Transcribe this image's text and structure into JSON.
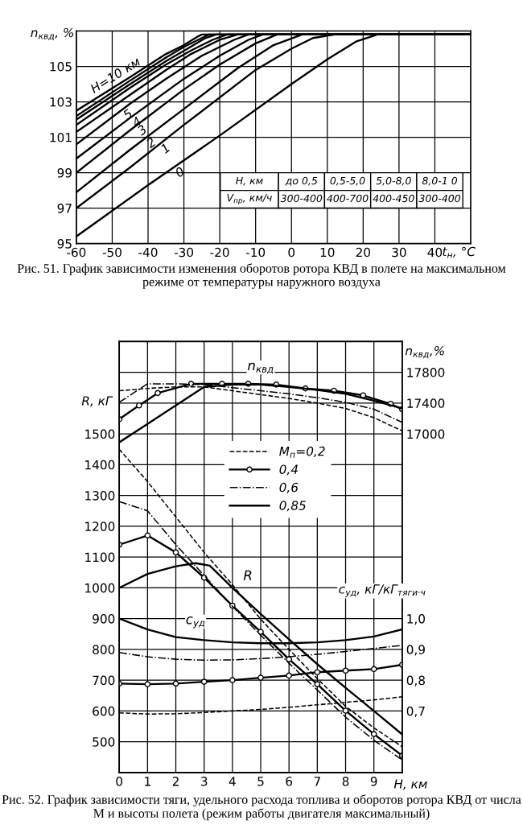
{
  "chart_data": [
    {
      "type": "line",
      "title": "Рис. 51. График зависимости изменения оборотов ротора КВД в полете на максимальном режиме от температуры наружного воздуха",
      "xlabel": "t$_{н}$, °C",
      "ylabel": "n$_{квд}$, %",
      "xlim": [
        -60,
        50
      ],
      "xticks": [
        -60,
        -50,
        -40,
        -30,
        -20,
        -10,
        0,
        10,
        20,
        30,
        40
      ],
      "ylim": [
        95,
        107
      ],
      "yticks": [
        95,
        97,
        99,
        101,
        103,
        105
      ],
      "grid": true,
      "legend": false,
      "annotations": [
        "H, км",
        "до 0,5",
        "0,5-5,0",
        "5,0-8,0",
        "8,0-1 0",
        "V$_{пр}$, км/ч",
        "300-400",
        "400-700",
        "400-450",
        "300-400"
      ],
      "series": [
        {
          "name": "0",
          "color": "#000000",
          "x": [
            -60,
            -40,
            -20,
            0,
            10,
            18,
            24,
            50
          ],
          "values": [
            95.4,
            98.3,
            101.1,
            104.0,
            105.4,
            106.4,
            106.8,
            106.8
          ]
        },
        {
          "name": "1",
          "color": "#000000",
          "x": [
            -60,
            -45,
            -30,
            -10,
            0,
            6,
            12,
            50
          ],
          "values": [
            97.0,
            99.3,
            101.7,
            104.8,
            106.0,
            106.6,
            106.8,
            106.8
          ]
        },
        {
          "name": "2",
          "color": "#000000",
          "x": [
            -60,
            -45,
            -30,
            -15,
            -5,
            3,
            50
          ],
          "values": [
            97.9,
            100.3,
            102.6,
            104.9,
            106.2,
            106.8,
            106.8
          ]
        },
        {
          "name": "3",
          "color": "#000000",
          "x": [
            -60,
            -45,
            -30,
            -20,
            -10,
            -4,
            50
          ],
          "values": [
            99.0,
            101.4,
            103.7,
            105.1,
            106.3,
            106.8,
            106.8
          ]
        },
        {
          "name": "4",
          "color": "#000000",
          "x": [
            -60,
            -45,
            -30,
            -20,
            -12,
            -8,
            50
          ],
          "values": [
            99.8,
            102.1,
            104.3,
            105.6,
            106.5,
            106.8,
            106.8
          ]
        },
        {
          "name": "5",
          "color": "#000000",
          "x": [
            -60,
            -45,
            -35,
            -25,
            -16,
            -12,
            50
          ],
          "values": [
            100.6,
            102.9,
            104.3,
            105.6,
            106.5,
            106.8,
            106.8
          ]
        },
        {
          "color": "#000000",
          "x": [
            -60,
            -45,
            -35,
            -28,
            -20,
            -15,
            50
          ],
          "values": [
            101.3,
            103.4,
            104.8,
            105.7,
            106.5,
            106.8,
            106.8
          ]
        },
        {
          "color": "#000000",
          "x": [
            -60,
            -45,
            -35,
            -28,
            -22,
            -18,
            50
          ],
          "values": [
            101.7,
            103.8,
            105.1,
            105.9,
            106.5,
            106.8,
            106.8
          ]
        },
        {
          "color": "#000000",
          "x": [
            -60,
            -45,
            -35,
            -29,
            -24,
            -21,
            50
          ],
          "values": [
            102.0,
            104.0,
            105.3,
            106.0,
            106.6,
            106.8,
            106.8
          ]
        },
        {
          "color": "#000000",
          "x": [
            -60,
            -45,
            -35,
            -30,
            -25,
            -23,
            50
          ],
          "values": [
            102.2,
            104.2,
            105.5,
            106.1,
            106.6,
            106.8,
            106.8
          ]
        },
        {
          "name": "H=10 км",
          "color": "#000000",
          "x": [
            -60,
            -45,
            -35,
            -30,
            -26,
            -25,
            50
          ],
          "values": [
            102.5,
            104.4,
            105.7,
            106.2,
            106.7,
            106.8,
            106.8
          ]
        }
      ]
    },
    {
      "type": "line",
      "title": "Рис. 52. График зависимости тяги, удельного расхода топлива и оборотов ротора КВД от числа М и высоты полета (режим работы двигателя максимальный)",
      "xlabel": "H, км",
      "ylabel": "R, кГ",
      "y2label": "n$_{квд}$,%",
      "y3label": "c$_{уд}$, кГ/кГ$_{тяги·ч}$",
      "xlim": [
        0,
        10
      ],
      "xticks": [
        0,
        1,
        2,
        3,
        4,
        5,
        6,
        7,
        8,
        9,
        {
          "value": 10,
          "label": null
        }
      ],
      "ylim": [
        400,
        1800
      ],
      "yticks": [
        500,
        600,
        700,
        800,
        900,
        1000,
        1100,
        1200,
        1300,
        1400,
        1500,
        {
          "value": 1600,
          "label": null
        },
        {
          "value": 1700,
          "label": null
        }
      ],
      "y2lim": [
        12600,
        18200
      ],
      "y2ticks": [
        17000,
        17400,
        17800
      ],
      "y3lim": [
        0.5,
        1.9
      ],
      "y3ticks": [
        {
          "value": 0.7,
          "label": "0,7"
        },
        {
          "value": 0.8,
          "label": "0,8"
        },
        {
          "value": 0.9,
          "label": "0,9"
        },
        {
          "value": 1.0,
          "label": "1,0"
        }
      ],
      "grid": true,
      "legend": "center",
      "annotations": [
        "R",
        "c$_{уд}$",
        "n$_{квд}$"
      ],
      "x": [
        0,
        1,
        2,
        3,
        4,
        5,
        6,
        7,
        8,
        9,
        10
      ],
      "series": [
        {
          "name": "M$_{п}$=0,2",
          "color": "#000000",
          "line_style": "dashed",
          "values": [
            1450,
            1345,
            1230,
            1115,
            1010,
            898,
            800,
            705,
            615,
            545,
            484
          ]
        },
        {
          "name": "0,4",
          "color": "#000000",
          "line_style": "solid",
          "marker": "circle",
          "values": [
            1140,
            1170,
            1115,
            1033,
            942,
            857,
            768,
            687,
            601,
            525,
            455
          ]
        },
        {
          "name": "0,6",
          "color": "#000000",
          "line_style": "dashdot",
          "values": [
            1280,
            1250,
            1140,
            1040,
            940,
            846,
            755,
            668,
            580,
            505,
            441
          ]
        },
        {
          "name": "0,85",
          "color": "#000000",
          "line_style": "solid",
          "x": [
            0,
            1,
            2,
            2.7,
            3.2,
            4,
            5,
            6,
            7,
            8,
            9,
            10
          ],
          "values": [
            1000,
            1045,
            1070,
            1080,
            1072,
            1000,
            915,
            833,
            752,
            675,
            600,
            524
          ]
        },
        {
          "color": "#000000",
          "line_style": "dashed",
          "axis": "y3",
          "values": [
            0.694,
            0.69,
            0.691,
            0.695,
            0.7,
            0.705,
            0.712,
            0.72,
            0.728,
            0.736,
            0.746
          ]
        },
        {
          "color": "#000000",
          "line_style": "solid",
          "marker": "circle",
          "axis": "y3",
          "values": [
            0.789,
            0.787,
            0.789,
            0.795,
            0.8,
            0.808,
            0.815,
            0.826,
            0.831,
            0.836,
            0.85
          ]
        },
        {
          "color": "#000000",
          "line_style": "dashdot",
          "axis": "y3",
          "values": [
            0.89,
            0.876,
            0.868,
            0.865,
            0.866,
            0.87,
            0.876,
            0.884,
            0.893,
            0.903,
            0.913
          ]
        },
        {
          "color": "#000000",
          "line_style": "solid",
          "axis": "y3",
          "values": [
            1.0,
            0.965,
            0.94,
            0.93,
            0.923,
            0.92,
            0.92,
            0.923,
            0.93,
            0.942,
            0.965
          ]
        },
        {
          "color": "#000000",
          "line_style": "dashed",
          "axis": "y2",
          "values": [
            17560,
            17590,
            17610,
            17610,
            17560,
            17510,
            17460,
            17400,
            17330,
            17210,
            17040
          ]
        },
        {
          "color": "#000000",
          "line_style": "solid",
          "marker": "circle",
          "axis": "y2",
          "x": [
            0,
            0.7,
            1.36,
            2.54,
            3.63,
            4.56,
            5.55,
            6.58,
            7.59,
            8.62,
            9.59,
            10
          ],
          "values": [
            17190,
            17370,
            17530,
            17650,
            17650,
            17650,
            17640,
            17590,
            17560,
            17500,
            17390,
            17320
          ]
        },
        {
          "color": "#000000",
          "line_style": "dashdot",
          "axis": "y2",
          "x": [
            0,
            0.5,
            1,
            2,
            3,
            4,
            5,
            6,
            7,
            8,
            9,
            10
          ],
          "values": [
            17410,
            17530,
            17650,
            17650,
            17640,
            17600,
            17560,
            17520,
            17470,
            17410,
            17320,
            17150
          ]
        },
        {
          "color": "#000000",
          "line_style": "solid",
          "axis": "y2",
          "values": [
            16890,
            17130,
            17370,
            17610,
            17640,
            17640,
            17610,
            17570,
            17520,
            17430,
            17330
          ]
        }
      ]
    }
  ]
}
